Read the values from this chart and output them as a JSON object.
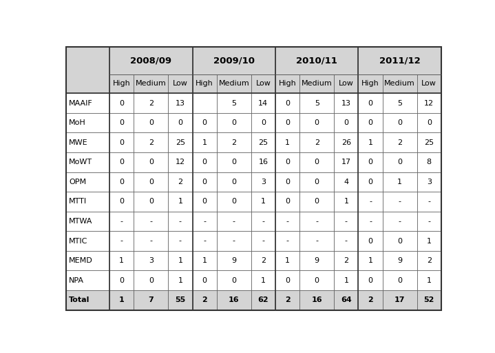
{
  "year_headers": [
    "2008/09",
    "2009/10",
    "2010/11",
    "2011/12"
  ],
  "sub_headers": [
    "High",
    "Medium",
    "Low"
  ],
  "row_labels": [
    "MAAIF",
    "MoH",
    "MWE",
    "MoWT",
    "OPM",
    "MTTI",
    "MTWA",
    "MTIC",
    "MEMD",
    "NPA",
    "Total"
  ],
  "data": [
    [
      "0",
      "2",
      "13",
      "",
      "5",
      "14",
      "0",
      "5",
      "13",
      "0",
      "5",
      "12"
    ],
    [
      "0",
      "0",
      "0",
      "0",
      "0",
      "0",
      "0",
      "0",
      "0",
      "0",
      "0",
      "0"
    ],
    [
      "0",
      "2",
      "25",
      "1",
      "2",
      "25",
      "1",
      "2",
      "26",
      "1",
      "2",
      "25"
    ],
    [
      "0",
      "0",
      "12",
      "0",
      "0",
      "16",
      "0",
      "0",
      "17",
      "0",
      "0",
      "8"
    ],
    [
      "0",
      "0",
      "2",
      "0",
      "0",
      "3",
      "0",
      "0",
      "4",
      "0",
      "1",
      "3"
    ],
    [
      "0",
      "0",
      "1",
      "0",
      "0",
      "1",
      "0",
      "0",
      "1",
      "-",
      "-",
      "-"
    ],
    [
      "-",
      "-",
      "-",
      "-",
      "-",
      "-",
      "-",
      "-",
      "-",
      "-",
      "-",
      "-"
    ],
    [
      "-",
      "-",
      "-",
      "-",
      "-",
      "-",
      "-",
      "-",
      "-",
      "0",
      "0",
      "1"
    ],
    [
      "1",
      "3",
      "1",
      "1",
      "9",
      "2",
      "1",
      "9",
      "2",
      "1",
      "9",
      "2"
    ],
    [
      "0",
      "0",
      "1",
      "0",
      "0",
      "1",
      "0",
      "0",
      "1",
      "0",
      "0",
      "1"
    ],
    [
      "1",
      "7",
      "55",
      "2",
      "16",
      "62",
      "2",
      "16",
      "64",
      "2",
      "17",
      "52"
    ]
  ],
  "header_bg": "#d4d4d4",
  "data_bg": "#ffffff",
  "total_bg": "#d4d4d4",
  "border_color": "#555555",
  "thick_border_color": "#333333",
  "text_color": "#000000",
  "font_size": 8.0,
  "subheader_font_size": 8.0,
  "year_font_size": 9.5,
  "fig_bg": "#ffffff"
}
